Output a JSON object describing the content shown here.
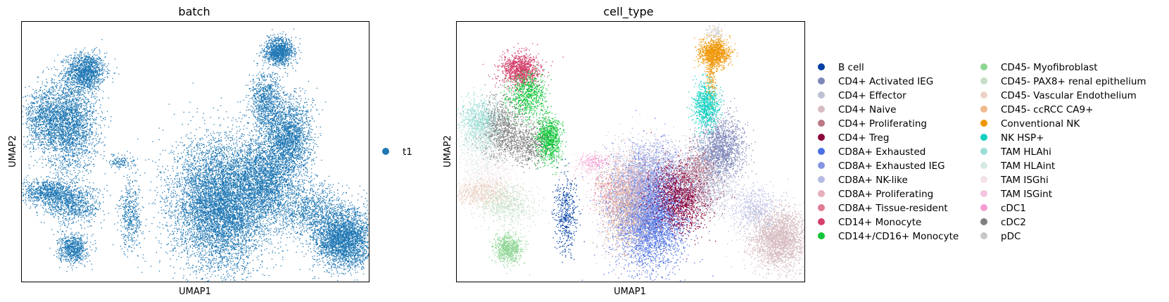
{
  "chart_data": [
    {
      "type": "scatter",
      "title": "batch",
      "xlabel": "UMAP1",
      "ylabel": "UMAP2",
      "grid": false,
      "legend_placement": "right",
      "legend": [
        {
          "label": "t1",
          "color": "#1f77b4"
        }
      ],
      "clusters": [
        {
          "group": "t1",
          "x": 2.0,
          "y": 6.5,
          "sx": 0.3,
          "sy": 0.28,
          "n": 1300
        },
        {
          "group": "t1",
          "x": 1.5,
          "y": 4.9,
          "sx": 0.42,
          "sy": 0.7,
          "n": 2400
        },
        {
          "group": "t1",
          "x": 0.7,
          "y": 5.1,
          "sx": 0.32,
          "sy": 0.45,
          "n": 900
        },
        {
          "group": "t1",
          "x": 0.8,
          "y": 2.9,
          "sx": 0.45,
          "sy": 0.2,
          "n": 900
        },
        {
          "group": "t1",
          "x": 1.6,
          "y": 2.5,
          "sx": 0.45,
          "sy": 0.28,
          "n": 800
        },
        {
          "group": "t1",
          "x": 1.6,
          "y": 1.2,
          "sx": 0.22,
          "sy": 0.22,
          "n": 700
        },
        {
          "group": "t1",
          "x": 3.1,
          "y": 3.8,
          "sx": 0.2,
          "sy": 0.1,
          "n": 130
        },
        {
          "group": "t1",
          "x": 3.4,
          "y": 2.2,
          "sx": 0.18,
          "sy": 0.55,
          "n": 450
        },
        {
          "group": "t1",
          "x": 6.2,
          "y": 2.5,
          "sx": 0.75,
          "sy": 0.95,
          "n": 7000
        },
        {
          "group": "t1",
          "x": 7.6,
          "y": 3.3,
          "sx": 0.5,
          "sy": 0.65,
          "n": 2400
        },
        {
          "group": "t1",
          "x": 8.3,
          "y": 4.5,
          "sx": 0.35,
          "sy": 0.6,
          "n": 1900
        },
        {
          "group": "t1",
          "x": 7.6,
          "y": 5.6,
          "sx": 0.25,
          "sy": 0.45,
          "n": 900
        },
        {
          "group": "t1",
          "x": 8.0,
          "y": 7.1,
          "sx": 0.23,
          "sy": 0.2,
          "n": 1100
        },
        {
          "group": "t1",
          "x": 10.0,
          "y": 1.5,
          "sx": 0.45,
          "sy": 0.45,
          "n": 3000
        },
        {
          "group": "t1",
          "x": 9.0,
          "y": 2.3,
          "sx": 0.5,
          "sy": 0.4,
          "n": 900
        }
      ]
    },
    {
      "type": "scatter",
      "title": "cell_type",
      "xlabel": "UMAP1",
      "ylabel": "UMAP2",
      "grid": false,
      "legend_placement": "right",
      "legend": [
        {
          "label": "B cell",
          "color": "#023fa5"
        },
        {
          "label": "CD4+ Activated IEG",
          "color": "#7d87b9"
        },
        {
          "label": "CD4+ Effector",
          "color": "#bec1d4"
        },
        {
          "label": "CD4+ Naive",
          "color": "#d6bcc0"
        },
        {
          "label": "CD4+ Proliferating",
          "color": "#bb7784"
        },
        {
          "label": "CD4+ Treg",
          "color": "#8e063b"
        },
        {
          "label": "CD8A+ Exhausted",
          "color": "#4a6fe3"
        },
        {
          "label": "CD8A+ Exhausted IEG",
          "color": "#8595e1"
        },
        {
          "label": "CD8A+ NK-like",
          "color": "#b5bbe3"
        },
        {
          "label": "CD8A+ Proliferating",
          "color": "#e6afb9"
        },
        {
          "label": "CD8A+ Tissue-resident",
          "color": "#e07b91"
        },
        {
          "label": "CD14+ Monocyte",
          "color": "#d33f6a"
        },
        {
          "label": "CD14+/CD16+ Monocyte",
          "color": "#11c638"
        },
        {
          "label": "CD45- Myofibroblast",
          "color": "#8dd593"
        },
        {
          "label": "CD45- PAX8+ renal epithelium",
          "color": "#c6dec7"
        },
        {
          "label": "CD45- Vascular Endothelium",
          "color": "#ead3c6"
        },
        {
          "label": "CD45- ccRCC CA9+",
          "color": "#f0b98d"
        },
        {
          "label": "Conventional NK",
          "color": "#ef9708"
        },
        {
          "label": "NK HSP+",
          "color": "#0fcfc0"
        },
        {
          "label": "TAM HLAhi",
          "color": "#9cded6"
        },
        {
          "label": "TAM HLAint",
          "color": "#d5eae7"
        },
        {
          "label": "TAM ISGhi",
          "color": "#f3e1eb"
        },
        {
          "label": "TAM ISGint",
          "color": "#f6c4e1"
        },
        {
          "label": "cDC1",
          "color": "#f79cd4"
        },
        {
          "label": "cDC2",
          "color": "#7f7f7f"
        },
        {
          "label": "pDC",
          "color": "#c7c7c7"
        }
      ],
      "clusters": [
        {
          "group": "CD14+ Monocyte",
          "x": 2.0,
          "y": 6.55,
          "sx": 0.3,
          "sy": 0.25,
          "n": 1100
        },
        {
          "group": "CD14+/CD16+ Monocyte",
          "x": 2.2,
          "y": 5.8,
          "sx": 0.3,
          "sy": 0.35,
          "n": 700
        },
        {
          "group": "CD14+/CD16+ Monocyte",
          "x": 2.85,
          "y": 4.5,
          "sx": 0.2,
          "sy": 0.35,
          "n": 900
        },
        {
          "group": "cDC2",
          "x": 1.4,
          "y": 4.8,
          "sx": 0.35,
          "sy": 0.45,
          "n": 1000
        },
        {
          "group": "cDC2",
          "x": 2.2,
          "y": 4.3,
          "sx": 0.3,
          "sy": 0.3,
          "n": 500
        },
        {
          "group": "TAM HLAhi",
          "x": 0.7,
          "y": 5.0,
          "sx": 0.3,
          "sy": 0.35,
          "n": 800
        },
        {
          "group": "TAM HLAint",
          "x": 0.8,
          "y": 4.3,
          "sx": 0.3,
          "sy": 0.45,
          "n": 500
        },
        {
          "group": "TAM ISGhi",
          "x": 1.0,
          "y": 3.6,
          "sx": 0.45,
          "sy": 0.35,
          "n": 300
        },
        {
          "group": "CD45- Vascular Endothelium",
          "x": 0.8,
          "y": 2.9,
          "sx": 0.45,
          "sy": 0.2,
          "n": 700
        },
        {
          "group": "CD45- PAX8+ renal epithelium",
          "x": 1.6,
          "y": 2.5,
          "sx": 0.45,
          "sy": 0.28,
          "n": 600
        },
        {
          "group": "CD45- Myofibroblast",
          "x": 1.6,
          "y": 1.2,
          "sx": 0.22,
          "sy": 0.22,
          "n": 700
        },
        {
          "group": "cDC1",
          "x": 4.25,
          "y": 3.8,
          "sx": 0.22,
          "sy": 0.12,
          "n": 150
        },
        {
          "group": "B cell",
          "x": 3.4,
          "y": 2.2,
          "sx": 0.18,
          "sy": 0.55,
          "n": 450
        },
        {
          "group": "CD8A+ Exhausted",
          "x": 6.0,
          "y": 2.2,
          "sx": 0.55,
          "sy": 0.8,
          "n": 4000
        },
        {
          "group": "CD8A+ Exhausted IEG",
          "x": 5.8,
          "y": 2.7,
          "sx": 0.5,
          "sy": 0.7,
          "n": 1500
        },
        {
          "group": "CD4+ Naive",
          "x": 5.2,
          "y": 2.6,
          "sx": 0.4,
          "sy": 0.8,
          "n": 1200
        },
        {
          "group": "CD8A+ Proliferating",
          "x": 5.5,
          "y": 3.1,
          "sx": 0.45,
          "sy": 0.5,
          "n": 500
        },
        {
          "group": "CD45- ccRCC CA9+",
          "x": 5.1,
          "y": 2.4,
          "sx": 0.35,
          "sy": 0.6,
          "n": 400
        },
        {
          "group": "CD8A+ NK-like",
          "x": 6.3,
          "y": 3.7,
          "sx": 0.5,
          "sy": 0.4,
          "n": 700
        },
        {
          "group": "CD4+ Treg",
          "x": 7.0,
          "y": 2.8,
          "sx": 0.45,
          "sy": 0.5,
          "n": 1700
        },
        {
          "group": "CD4+ Effector",
          "x": 7.7,
          "y": 3.2,
          "sx": 0.45,
          "sy": 0.5,
          "n": 1200
        },
        {
          "group": "CD4+ Activated IEG",
          "x": 8.2,
          "y": 4.2,
          "sx": 0.35,
          "sy": 0.45,
          "n": 1500
        },
        {
          "group": "CD4+ Proliferating",
          "x": 7.5,
          "y": 3.6,
          "sx": 0.3,
          "sy": 0.3,
          "n": 250
        },
        {
          "group": "NK HSP+",
          "x": 7.75,
          "y": 5.5,
          "sx": 0.2,
          "sy": 0.35,
          "n": 800
        },
        {
          "group": "Conventional NK",
          "x": 8.0,
          "y": 7.05,
          "sx": 0.22,
          "sy": 0.22,
          "n": 1100
        },
        {
          "group": "Conventional NK",
          "x": 7.9,
          "y": 6.4,
          "sx": 0.08,
          "sy": 0.35,
          "n": 150
        },
        {
          "group": "CD4+ Naive",
          "x": 10.0,
          "y": 1.5,
          "sx": 0.45,
          "sy": 0.45,
          "n": 2600
        },
        {
          "group": "CD8A+ NK-like",
          "x": 9.2,
          "y": 2.4,
          "sx": 0.4,
          "sy": 0.35,
          "n": 500
        },
        {
          "group": "CD8A+ Tissue-resident",
          "x": 4.7,
          "y": 2.9,
          "sx": 0.3,
          "sy": 0.4,
          "n": 150
        },
        {
          "group": "TAM ISGint",
          "x": 4.0,
          "y": 3.6,
          "sx": 0.3,
          "sy": 0.2,
          "n": 100
        },
        {
          "group": "pDC",
          "x": 8.0,
          "y": 7.7,
          "sx": 0.15,
          "sy": 0.12,
          "n": 80
        }
      ]
    }
  ]
}
